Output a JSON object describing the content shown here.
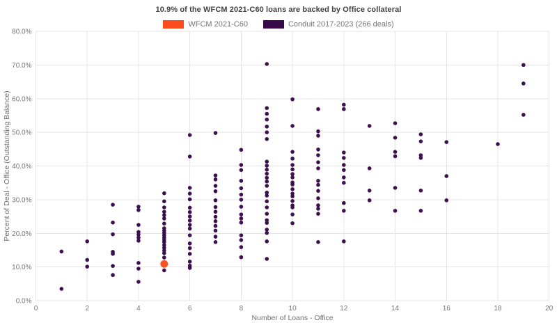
{
  "title": "10.9% of the WFCM 2021-C60 loans are backed by Office collateral",
  "legend": [
    {
      "label": "WFCM 2021-C60",
      "color": "#fa4b1e"
    },
    {
      "label": "Conduit 2017-2023 (266 deals)",
      "color": "#37094a"
    }
  ],
  "chart_data": {
    "type": "scatter",
    "title": "10.9% of the WFCM 2021-C60 loans are backed by Office collateral",
    "xlabel": "Number of Loans - Office",
    "ylabel": "Percent of Deal - Office (Outstanding Balance)",
    "xlim": [
      0,
      20
    ],
    "ylim": [
      0,
      80
    ],
    "x_ticks": [
      0,
      2,
      4,
      6,
      8,
      10,
      12,
      14,
      16,
      18,
      20
    ],
    "y_ticks": [
      0,
      10,
      20,
      30,
      40,
      50,
      60,
      70,
      80
    ],
    "y_tick_labels": [
      "0.0%",
      "10.0%",
      "20.0%",
      "30.0%",
      "40.0%",
      "50.0%",
      "60.0%",
      "70.0%",
      "80.0%"
    ],
    "grid": true,
    "legend_position": "top-center",
    "series": [
      {
        "name": "Conduit 2017-2023 (266 deals)",
        "color": "#37094a",
        "marker_radius": 2.8,
        "points": [
          [
            1,
            14.6
          ],
          [
            1,
            3.5
          ],
          [
            2,
            17.6
          ],
          [
            2,
            12.1
          ],
          [
            2,
            10.1
          ],
          [
            3,
            28.5
          ],
          [
            3,
            23.2
          ],
          [
            3,
            19.7
          ],
          [
            3,
            14.5
          ],
          [
            3,
            13.9
          ],
          [
            3,
            10.3
          ],
          [
            3,
            7.6
          ],
          [
            4,
            27.9
          ],
          [
            4,
            26.9
          ],
          [
            4,
            22.5
          ],
          [
            4,
            20.4
          ],
          [
            4,
            19.6
          ],
          [
            4,
            18.7
          ],
          [
            4,
            17.8
          ],
          [
            4,
            11.2
          ],
          [
            4,
            9.5
          ],
          [
            4,
            5.6
          ],
          [
            5,
            31.9
          ],
          [
            5,
            29.5
          ],
          [
            5,
            27.7
          ],
          [
            5,
            26.4
          ],
          [
            5,
            25.4
          ],
          [
            5,
            24.4
          ],
          [
            5,
            22.9
          ],
          [
            5,
            21.5
          ],
          [
            5,
            20.8
          ],
          [
            5,
            20.1
          ],
          [
            5,
            19.4
          ],
          [
            5,
            18.7
          ],
          [
            5,
            18.0
          ],
          [
            5,
            17.4
          ],
          [
            5,
            16.5
          ],
          [
            5,
            15.7
          ],
          [
            5,
            14.9
          ],
          [
            5,
            14.1
          ],
          [
            5,
            12.8
          ],
          [
            5,
            9.0
          ],
          [
            6,
            49.2
          ],
          [
            6,
            42.8
          ],
          [
            6,
            33.5
          ],
          [
            6,
            31.8
          ],
          [
            6,
            30.1
          ],
          [
            6,
            27.6
          ],
          [
            6,
            26.3
          ],
          [
            6,
            25.0
          ],
          [
            6,
            23.8
          ],
          [
            6,
            22.5
          ],
          [
            6,
            21.4
          ],
          [
            6,
            19.4
          ],
          [
            6,
            17.0
          ],
          [
            6,
            15.6
          ],
          [
            6,
            13.9
          ],
          [
            6,
            11.6
          ],
          [
            6,
            10.4
          ],
          [
            6,
            9.7
          ],
          [
            7,
            49.8
          ],
          [
            7,
            37.2
          ],
          [
            7,
            36.0
          ],
          [
            7,
            34.1
          ],
          [
            7,
            32.5
          ],
          [
            7,
            29.8
          ],
          [
            7,
            27.8
          ],
          [
            7,
            26.4
          ],
          [
            7,
            24.9
          ],
          [
            7,
            23.6
          ],
          [
            7,
            22.2
          ],
          [
            7,
            20.8
          ],
          [
            7,
            19.0
          ],
          [
            7,
            17.4
          ],
          [
            8,
            44.8
          ],
          [
            8,
            40.3
          ],
          [
            8,
            38.8
          ],
          [
            8,
            35.6
          ],
          [
            8,
            33.4
          ],
          [
            8,
            31.5
          ],
          [
            8,
            30.0
          ],
          [
            8,
            27.9
          ],
          [
            8,
            25.6
          ],
          [
            8,
            24.4
          ],
          [
            8,
            23.2
          ],
          [
            8,
            19.4
          ],
          [
            8,
            18.0
          ],
          [
            8,
            15.9
          ],
          [
            8,
            12.9
          ],
          [
            9,
            70.3
          ],
          [
            9,
            57.2
          ],
          [
            9,
            55.5
          ],
          [
            9,
            53.8
          ],
          [
            9,
            51.7
          ],
          [
            9,
            50.0
          ],
          [
            9,
            48.0
          ],
          [
            9,
            41.3
          ],
          [
            9,
            40.1
          ],
          [
            9,
            38.9
          ],
          [
            9,
            37.7
          ],
          [
            9,
            36.5
          ],
          [
            9,
            35.4
          ],
          [
            9,
            34.1
          ],
          [
            9,
            32.1
          ],
          [
            9,
            31.2
          ],
          [
            9,
            29.5
          ],
          [
            9,
            27.7
          ],
          [
            9,
            25.8
          ],
          [
            9,
            23.9
          ],
          [
            9,
            23.1
          ],
          [
            9,
            21.1
          ],
          [
            9,
            20.1
          ],
          [
            9,
            17.6
          ],
          [
            9,
            12.4
          ],
          [
            10,
            59.8
          ],
          [
            10,
            51.9
          ],
          [
            10,
            44.2
          ],
          [
            10,
            42.2
          ],
          [
            10,
            40.3
          ],
          [
            10,
            39.0
          ],
          [
            10,
            37.6
          ],
          [
            10,
            36.6
          ],
          [
            10,
            35.1
          ],
          [
            10,
            34.5
          ],
          [
            10,
            33.1
          ],
          [
            10,
            31.8
          ],
          [
            10,
            31.0
          ],
          [
            10,
            29.6
          ],
          [
            10,
            28.3
          ],
          [
            10,
            27.7
          ],
          [
            10,
            25.6
          ],
          [
            10,
            23.0
          ],
          [
            11,
            56.9
          ],
          [
            11,
            50.3
          ],
          [
            11,
            49.0
          ],
          [
            11,
            44.9
          ],
          [
            11,
            43.2
          ],
          [
            11,
            41.1
          ],
          [
            11,
            39.3
          ],
          [
            11,
            35.6
          ],
          [
            11,
            34.4
          ],
          [
            11,
            32.6
          ],
          [
            11,
            30.4
          ],
          [
            11,
            28.3
          ],
          [
            11,
            27.3
          ],
          [
            11,
            25.8
          ],
          [
            11,
            17.4
          ],
          [
            12,
            58.2
          ],
          [
            12,
            56.9
          ],
          [
            12,
            44.0
          ],
          [
            12,
            42.4
          ],
          [
            12,
            40.3
          ],
          [
            12,
            38.8
          ],
          [
            12,
            36.6
          ],
          [
            12,
            35.0
          ],
          [
            12,
            29.0
          ],
          [
            12,
            26.7
          ],
          [
            12,
            17.6
          ],
          [
            13,
            51.9
          ],
          [
            13,
            39.3
          ],
          [
            13,
            32.7
          ],
          [
            13,
            29.8
          ],
          [
            14,
            52.7
          ],
          [
            14,
            48.4
          ],
          [
            14,
            44.2
          ],
          [
            14,
            42.9
          ],
          [
            14,
            33.5
          ],
          [
            14,
            26.7
          ],
          [
            15,
            49.4
          ],
          [
            15,
            47.3
          ],
          [
            15,
            43.2
          ],
          [
            15,
            42.4
          ],
          [
            15,
            32.7
          ],
          [
            15,
            26.7
          ],
          [
            16,
            47.1
          ],
          [
            16,
            37.0
          ],
          [
            16,
            29.8
          ],
          [
            18,
            46.5
          ],
          [
            19,
            70.0
          ],
          [
            19,
            64.5
          ],
          [
            19,
            55.2
          ]
        ]
      },
      {
        "name": "WFCM 2021-C60",
        "color": "#fa4b1e",
        "marker_radius": 5.5,
        "points": [
          [
            5,
            10.9
          ]
        ]
      }
    ]
  }
}
